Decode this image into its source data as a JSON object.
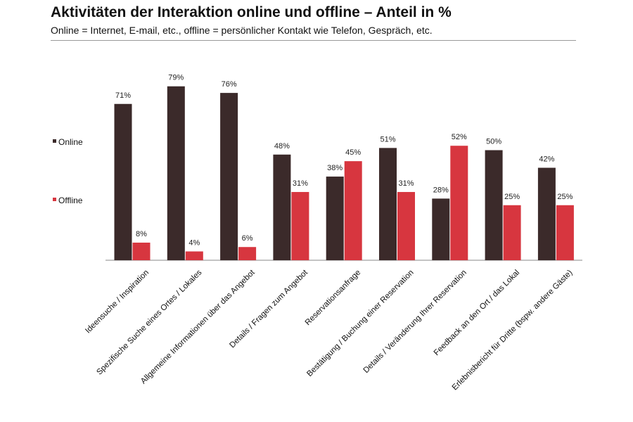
{
  "header": {
    "title": "Aktivitäten der Interaktion online und offline – Anteil in %",
    "subtitle": "Online = Internet, E-mail, etc., offline = persönlicher Kontakt wie Telefon, Gespräch, etc."
  },
  "colors": {
    "online": "#3b2a2a",
    "offline": "#d7363f"
  },
  "chart_data": {
    "type": "bar",
    "title": "Aktivitäten der Interaktion online und offline – Anteil in %",
    "subtitle": "Online = Internet, E-mail, etc., offline = persönlicher Kontakt wie Telefon, Gespräch, etc.",
    "xlabel": "",
    "ylabel": "",
    "ylim": [
      0,
      80
    ],
    "grid": false,
    "legend": "left",
    "categories": [
      "Ideensuche / Inspiration",
      "Spezifische Suche eines Ortes / Lokales",
      "Allgemeine Informationen über das Angebot",
      "Details / Fragen zum Angebot",
      "Reservationsanfrage",
      "Bestätigung / Buchung einer Reservation",
      "Details / Veränderung Ihrer Reservation",
      "Feedback an den Ort / das Lokal",
      "Erlebnisbericht für Dritte (bspw. andere Gäste)"
    ],
    "series": [
      {
        "name": "Online",
        "values": [
          71,
          79,
          76,
          48,
          38,
          51,
          28,
          50,
          42
        ],
        "labels": [
          "71%",
          "79%",
          "76%",
          "48%",
          "38%",
          "51%",
          "28%",
          "50%",
          "42%"
        ]
      },
      {
        "name": "Offline",
        "values": [
          8,
          4,
          6,
          31,
          45,
          31,
          52,
          25,
          25
        ],
        "labels": [
          "8%",
          "4%",
          "6%",
          "31%",
          "45%",
          "31%",
          "52%",
          "25%",
          "25%"
        ]
      }
    ]
  }
}
